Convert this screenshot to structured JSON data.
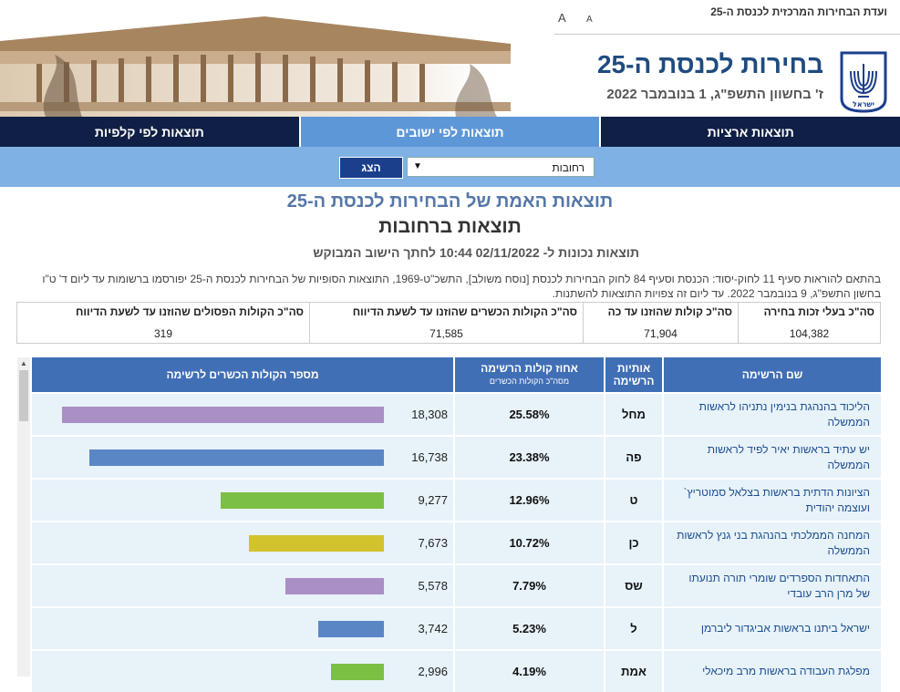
{
  "header": {
    "committee": "ועדת הבחירות המרכזית לכנסת ה-25",
    "font_large": "A",
    "font_small": "A",
    "title": "בחירות לכנסת ה-25",
    "date": "ז' בחשוון התשפ\"ג, 1 בנובמבר 2022",
    "emblem_label": "ישראל"
  },
  "tabs": [
    {
      "label": "תוצאות ארציות",
      "active": false
    },
    {
      "label": "תוצאות לפי ישובים",
      "active": true
    },
    {
      "label": "תוצאות לפי קלפיות",
      "active": false
    }
  ],
  "filter": {
    "settlement": "רחובות",
    "show_label": "הצג"
  },
  "results": {
    "title": "תוצאות האמת של הבחירות לכנסת ה-25",
    "subtitle": "תוצאות ברחובות",
    "valid_line": "תוצאות נכונות ל- 02/11/2022 10:44 לחתך הישוב המבוקש",
    "notice": "בהתאם להוראות סעיף 11 לחוק-יסוד: הכנסת וסעיף 84 לחוק הבחירות לכנסת [נוסח משולב], התשכ\"ט-1969, התוצאות הסופיות של הבחירות לכנסת ה-25 יפורסמו ברשומות עד ליום ד' ט\"ו בחשון התשפ\"ג, 9 בנובמבר 2022. עד ליום זה צפויות התוצאות להשתנות."
  },
  "summary": [
    {
      "label": "סה\"כ בעלי זכות בחירה",
      "value": "104,382"
    },
    {
      "label": "סה\"כ קולות שהוזנו עד כה",
      "value": "71,904"
    },
    {
      "label": "סה\"כ הקולות הכשרים שהוזנו עד לשעת הדיווח",
      "value": "71,585"
    },
    {
      "label": "סה\"כ הקולות הפסולים שהוזנו עד לשעת הדיווח",
      "value": "319"
    }
  ],
  "table": {
    "headers": {
      "name": "שם הרשימה",
      "letters_1": "אותיות",
      "letters_2": "הרשימה",
      "pct_1": "אחוז קולות הרשימה",
      "pct_2": "מסה\"כ הקולות הכשרים",
      "votes": "מספר הקולות הכשרים לרשימה"
    },
    "rows": [
      {
        "name": "הליכוד בהנהגת בנימין נתניהו לראשות הממשלה",
        "letters": "מחל",
        "pct": "25.58%",
        "votes": "18,308",
        "votes_num": 18308,
        "color": "#a98fc4"
      },
      {
        "name": "יש עתיד בראשות יאיר לפיד לראשות הממשלה",
        "letters": "פה",
        "pct": "23.38%",
        "votes": "16,738",
        "votes_num": 16738,
        "color": "#5b86c6"
      },
      {
        "name": "הציונות הדתית בראשות בצלאל סמוטריץ` ועוצמה יהודית",
        "letters": "ט",
        "pct": "12.96%",
        "votes": "9,277",
        "votes_num": 9277,
        "color": "#7cbf45"
      },
      {
        "name": "המחנה הממלכתי בהנהגת בני גנץ לראשות הממשלה",
        "letters": "כן",
        "pct": "10.72%",
        "votes": "7,673",
        "votes_num": 7673,
        "color": "#d2c22e"
      },
      {
        "name": "התאחדות הספרדים שומרי תורה תנועתו של מרן הרב עובדי",
        "letters": "שס",
        "pct": "7.79%",
        "votes": "5,578",
        "votes_num": 5578,
        "color": "#a98fc4"
      },
      {
        "name": "ישראל ביתנו בראשות אביגדור ליברמן",
        "letters": "ל",
        "pct": "5.23%",
        "votes": "3,742",
        "votes_num": 3742,
        "color": "#5b86c6"
      },
      {
        "name": "מפלגת העבודה בראשות מרב מיכאלי",
        "letters": "אמת",
        "pct": "4.19%",
        "votes": "2,996",
        "votes_num": 2996,
        "color": "#7cbf45"
      }
    ]
  }
}
